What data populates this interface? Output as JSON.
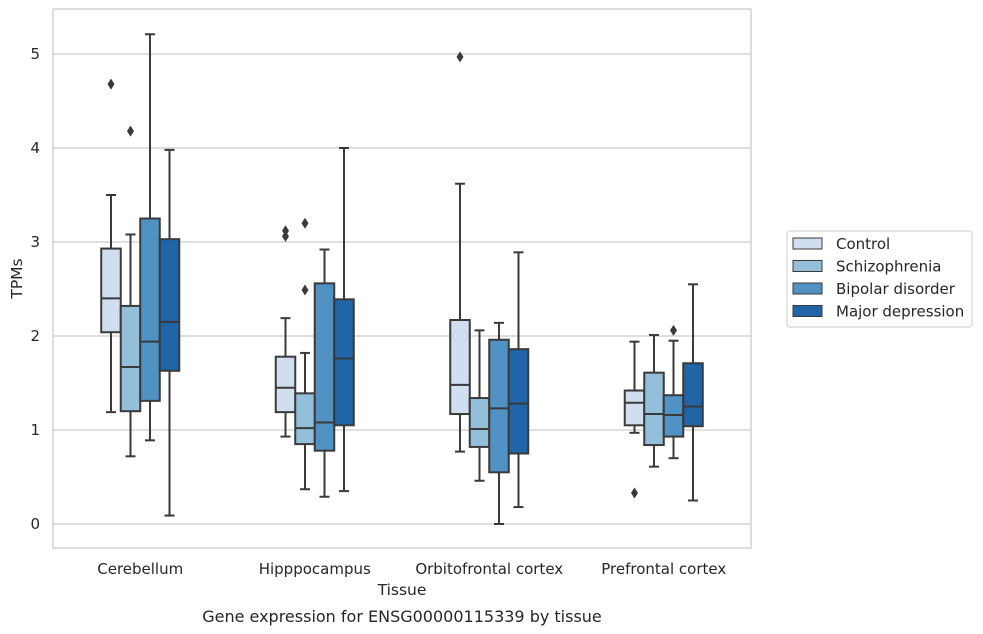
{
  "chart_data": {
    "type": "boxplot",
    "title": "",
    "caption": "Gene expression for ENSG00000115339 by tissue",
    "xlabel": "Tissue",
    "ylabel": "TPMs",
    "ylim": [
      -0.25,
      5.5
    ],
    "yticks": [
      0,
      1,
      2,
      3,
      4,
      5
    ],
    "grid": "horizontal",
    "legend_placement": "right",
    "categories": [
      "Cerebellum",
      "Hipppocampus",
      "Orbitofrontal cortex",
      "Prefrontal cortex"
    ],
    "series": [
      {
        "name": "Control",
        "color": "#d0dff0",
        "boxes": [
          {
            "whisker_low": 1.19,
            "q1": 2.04,
            "median": 2.4,
            "q3": 2.93,
            "whisker_high": 3.5,
            "outliers": [
              4.68
            ]
          },
          {
            "whisker_low": 0.93,
            "q1": 1.19,
            "median": 1.45,
            "q3": 1.78,
            "whisker_high": 2.19,
            "outliers": [
              3.06,
              3.12
            ]
          },
          {
            "whisker_low": 0.77,
            "q1": 1.17,
            "median": 1.48,
            "q3": 2.17,
            "whisker_high": 3.62,
            "outliers": [
              4.97
            ]
          },
          {
            "whisker_low": 0.97,
            "q1": 1.05,
            "median": 1.29,
            "q3": 1.42,
            "whisker_high": 1.94,
            "outliers": [
              0.33
            ]
          }
        ]
      },
      {
        "name": "Schizophrenia",
        "color": "#94bfdb",
        "boxes": [
          {
            "whisker_low": 0.72,
            "q1": 1.2,
            "median": 1.67,
            "q3": 2.32,
            "whisker_high": 3.08,
            "outliers": [
              4.18
            ]
          },
          {
            "whisker_low": 0.37,
            "q1": 0.85,
            "median": 1.02,
            "q3": 1.39,
            "whisker_high": 1.82,
            "outliers": [
              2.49,
              3.2
            ]
          },
          {
            "whisker_low": 0.46,
            "q1": 0.82,
            "median": 1.01,
            "q3": 1.34,
            "whisker_high": 2.06,
            "outliers": []
          },
          {
            "whisker_low": 0.61,
            "q1": 0.84,
            "median": 1.17,
            "q3": 1.61,
            "whisker_high": 2.01,
            "outliers": []
          }
        ]
      },
      {
        "name": "Bipolar disorder",
        "color": "#4f92c3",
        "boxes": [
          {
            "whisker_low": 0.89,
            "q1": 1.31,
            "median": 1.94,
            "q3": 3.25,
            "whisker_high": 5.21,
            "outliers": []
          },
          {
            "whisker_low": 0.29,
            "q1": 0.78,
            "median": 1.08,
            "q3": 2.56,
            "whisker_high": 2.92,
            "outliers": []
          },
          {
            "whisker_low": 0.0,
            "q1": 0.55,
            "median": 1.23,
            "q3": 1.96,
            "whisker_high": 2.14,
            "outliers": []
          },
          {
            "whisker_low": 0.7,
            "q1": 0.93,
            "median": 1.16,
            "q3": 1.37,
            "whisker_high": 1.95,
            "outliers": [
              2.06
            ]
          }
        ]
      },
      {
        "name": "Major depression",
        "color": "#1f65a8",
        "boxes": [
          {
            "whisker_low": 0.09,
            "q1": 1.63,
            "median": 2.15,
            "q3": 3.03,
            "whisker_high": 3.98,
            "outliers": []
          },
          {
            "whisker_low": 0.35,
            "q1": 1.05,
            "median": 1.76,
            "q3": 2.39,
            "whisker_high": 4.0,
            "outliers": []
          },
          {
            "whisker_low": 0.18,
            "q1": 0.75,
            "median": 1.28,
            "q3": 1.86,
            "whisker_high": 2.89,
            "outliers": []
          },
          {
            "whisker_low": 0.25,
            "q1": 1.04,
            "median": 1.25,
            "q3": 1.71,
            "whisker_high": 2.55,
            "outliers": []
          }
        ]
      }
    ]
  }
}
